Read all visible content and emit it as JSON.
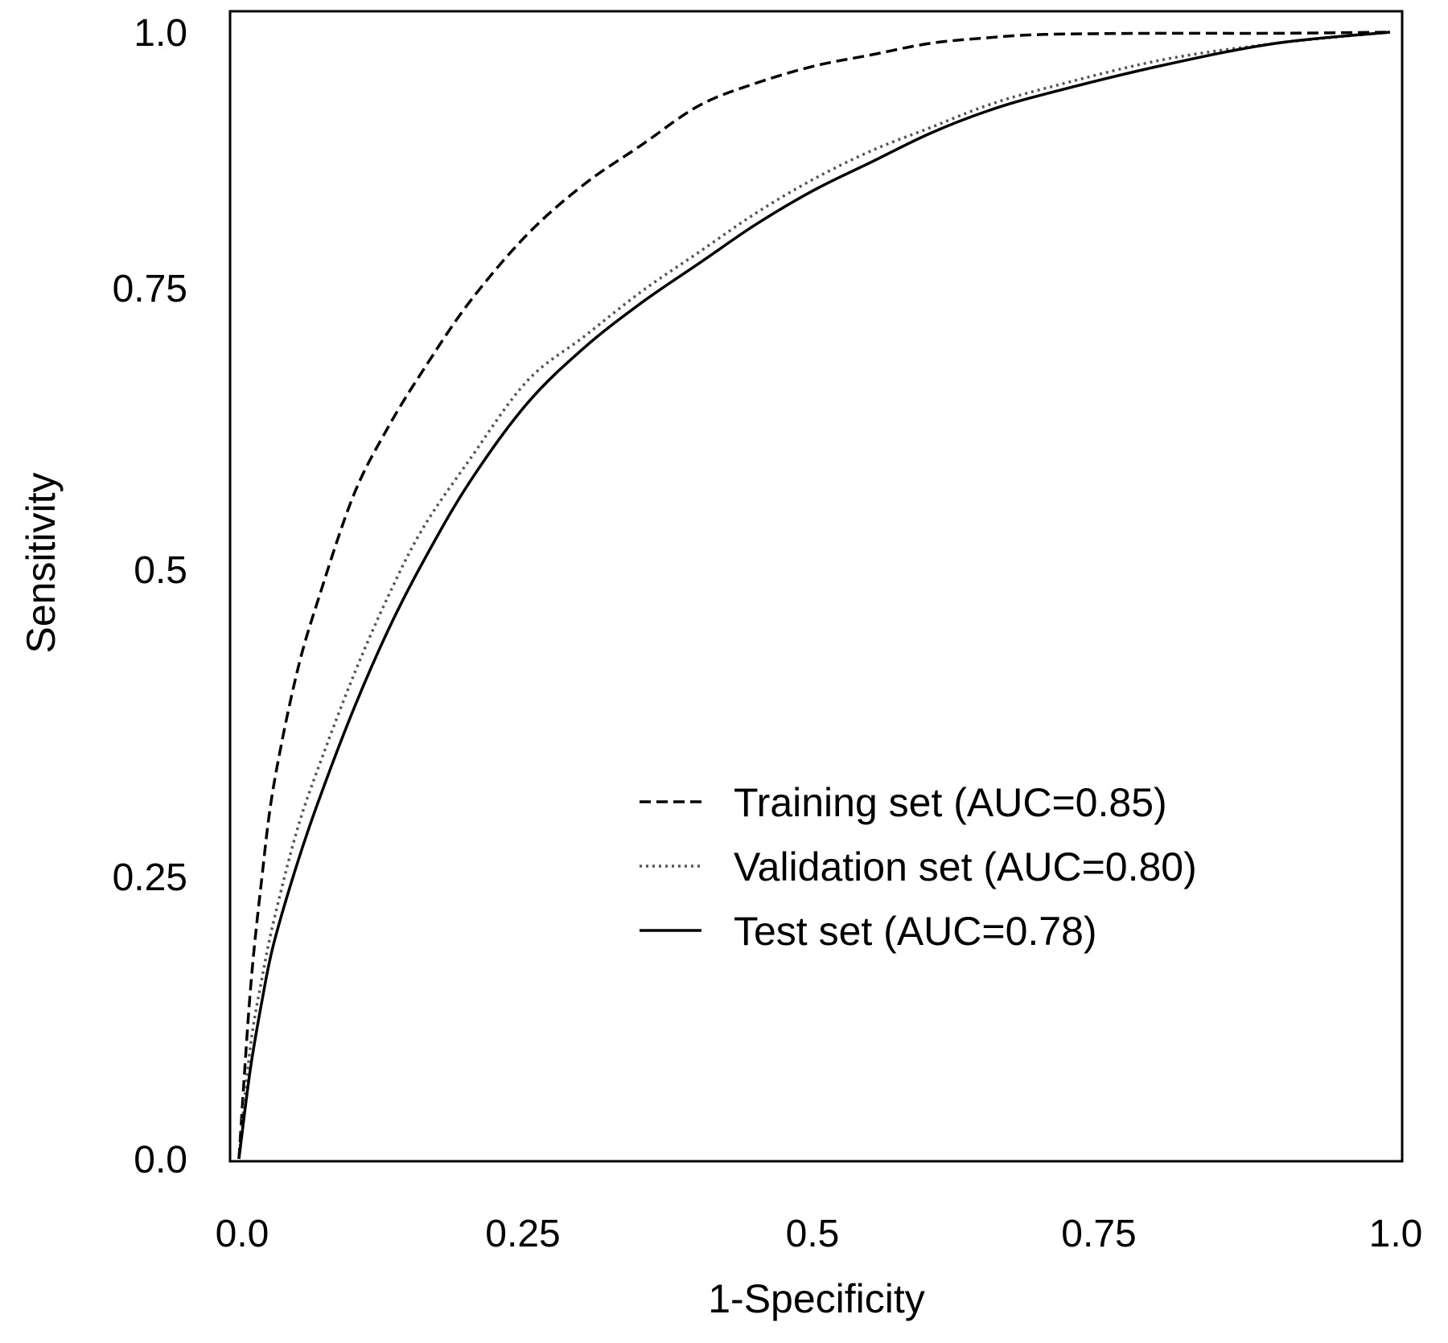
{
  "chart_data": {
    "type": "line",
    "title": "",
    "xlabel": "1-Specificity",
    "ylabel": "Sensitivity",
    "xlim": [
      0,
      1
    ],
    "ylim": [
      0,
      1
    ],
    "x_ticks": [
      "0.0",
      "0.25",
      "0.5",
      "0.75",
      "1.0"
    ],
    "y_ticks": [
      "0.0",
      "0.25",
      "0.5",
      "0.75",
      "1.0"
    ],
    "grid": false,
    "legend_position": "bottom-right",
    "series": [
      {
        "name": "Training set (AUC=0.85)",
        "style": "dashed",
        "color": "#000000",
        "x": [
          0.0,
          0.01,
          0.02,
          0.03,
          0.05,
          0.07,
          0.1,
          0.13,
          0.16,
          0.2,
          0.25,
          0.3,
          0.35,
          0.4,
          0.45,
          0.5,
          0.55,
          0.6,
          0.65,
          0.7,
          0.8,
          0.9,
          1.0
        ],
        "y": [
          0.0,
          0.15,
          0.25,
          0.33,
          0.43,
          0.5,
          0.59,
          0.65,
          0.7,
          0.76,
          0.82,
          0.865,
          0.9,
          0.935,
          0.955,
          0.97,
          0.98,
          0.99,
          0.995,
          0.998,
          0.999,
          0.999,
          1.0
        ]
      },
      {
        "name": "Validation set (AUC=0.80)",
        "style": "dotted",
        "color": "#888888",
        "x": [
          0.0,
          0.01,
          0.02,
          0.03,
          0.05,
          0.07,
          0.1,
          0.13,
          0.16,
          0.2,
          0.25,
          0.3,
          0.35,
          0.4,
          0.45,
          0.5,
          0.55,
          0.6,
          0.65,
          0.7,
          0.8,
          0.9,
          1.0
        ],
        "y": [
          0.0,
          0.1,
          0.16,
          0.21,
          0.29,
          0.35,
          0.43,
          0.5,
          0.56,
          0.62,
          0.69,
          0.73,
          0.77,
          0.805,
          0.84,
          0.87,
          0.895,
          0.915,
          0.935,
          0.95,
          0.975,
          0.99,
          1.0
        ]
      },
      {
        "name": "Test set (AUC=0.78)",
        "style": "solid",
        "color": "#000000",
        "x": [
          0.0,
          0.01,
          0.02,
          0.03,
          0.05,
          0.07,
          0.1,
          0.13,
          0.16,
          0.2,
          0.25,
          0.3,
          0.35,
          0.4,
          0.45,
          0.5,
          0.55,
          0.6,
          0.65,
          0.7,
          0.8,
          0.9,
          1.0
        ],
        "y": [
          0.0,
          0.08,
          0.14,
          0.19,
          0.26,
          0.32,
          0.4,
          0.47,
          0.53,
          0.6,
          0.67,
          0.72,
          0.76,
          0.795,
          0.83,
          0.86,
          0.885,
          0.91,
          0.93,
          0.945,
          0.97,
          0.99,
          1.0
        ]
      }
    ]
  }
}
